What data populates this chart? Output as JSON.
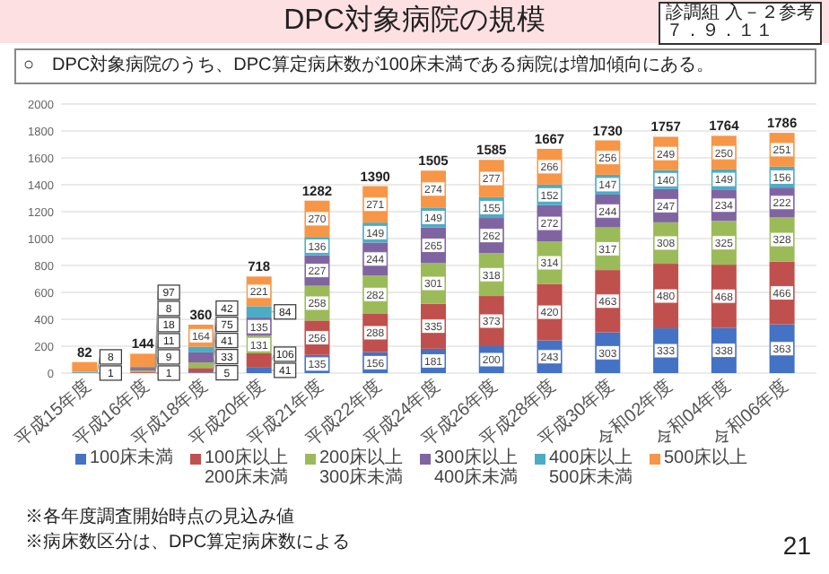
{
  "chart_data": {
    "type": "bar",
    "stacked": true,
    "title": "DPC対象病院の規模",
    "subtitle": "○　DPC対象病院のうち、DPC算定病床数が100床未満である病院は増加傾向にある。",
    "categories": [
      "平成15年度",
      "平成16年度",
      "平成18年度",
      "平成20年度",
      "平成21年度",
      "平成22年度",
      "平成24年度",
      "平成26年度",
      "平成28年度",
      "平成30年度",
      "令和02年度",
      "令和04年度",
      "令和06年度"
    ],
    "series": [
      {
        "name": "100床未満",
        "color": "#4472c4",
        "values": [
          null,
          1,
          5,
          41,
          135,
          156,
          181,
          200,
          243,
          303,
          333,
          338,
          363
        ],
        "value_labels": [
          null,
          "1",
          "5",
          "41",
          "135",
          "156",
          "181",
          "200",
          "243",
          "303",
          "333",
          "338",
          "363"
        ]
      },
      {
        "name": "100床以上200床未満",
        "color": "#c0504d",
        "values": [
          null,
          9,
          33,
          106,
          256,
          288,
          335,
          373,
          420,
          463,
          480,
          468,
          466
        ],
        "value_labels": [
          null,
          "9",
          "33",
          "106",
          "256",
          "288",
          "335",
          "373",
          "420",
          "463",
          "480",
          "468",
          "466"
        ]
      },
      {
        "name": "200床以上300床未満",
        "color": "#9bbb59",
        "values": [
          null,
          11,
          41,
          131,
          258,
          282,
          301,
          318,
          314,
          317,
          308,
          325,
          328
        ],
        "value_labels": [
          null,
          "11",
          "41",
          "131",
          "258",
          "282",
          "301",
          "318",
          "314",
          "317",
          "308",
          "325",
          "328"
        ]
      },
      {
        "name": "300床以上400床未満",
        "color": "#8064a2",
        "values": [
          1,
          18,
          75,
          135,
          227,
          244,
          265,
          262,
          272,
          244,
          247,
          234,
          222
        ],
        "value_labels": [
          "1",
          "18",
          "75",
          "135",
          "227",
          "244",
          "265",
          "262",
          "272",
          "244",
          "247",
          "234",
          "222"
        ]
      },
      {
        "name": "400床以上500床未満",
        "color": "#4bacc6",
        "values": [
          8,
          8,
          42,
          84,
          136,
          149,
          149,
          155,
          152,
          147,
          140,
          149,
          156
        ],
        "value_labels": [
          "8",
          "8",
          "42",
          "84",
          "136",
          "149",
          "149",
          "155",
          "152",
          "147",
          "140",
          "149",
          "156"
        ]
      },
      {
        "name": "500床以上",
        "color": "#f79646",
        "values": [
          73,
          97,
          164,
          221,
          270,
          271,
          274,
          277,
          266,
          256,
          249,
          250,
          251
        ],
        "value_labels": [
          null,
          "97",
          "164",
          "221",
          "270",
          "271",
          "274",
          "277",
          "266",
          "256",
          "249",
          "250",
          "251"
        ]
      }
    ],
    "totals": [
      "82",
      "144",
      "360",
      "718",
      "1282",
      "1390",
      "1505",
      "1585",
      "1667",
      "1730",
      "1757",
      "1764",
      "1786"
    ],
    "ylim": [
      0,
      2000
    ],
    "yticks": [
      0,
      200,
      400,
      600,
      800,
      1000,
      1200,
      1400,
      1600,
      1800,
      2000
    ],
    "grid": "y",
    "legend": "bottom",
    "annotations": [
      "診調組 入－２参考",
      "７．９．１１",
      "※各年度調査開始時点の見込み値",
      "※病床数区分は、DPC算定病床数による",
      "21"
    ]
  }
}
